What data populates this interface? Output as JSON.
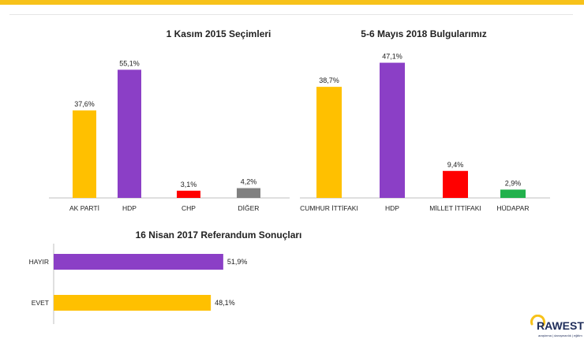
{
  "colors": {
    "accent_bar": "#f7c21a",
    "yellow": "#ffc000",
    "purple": "#8b3fc6",
    "red": "#ff0000",
    "gray": "#808080",
    "green": "#22b14c"
  },
  "chart_data": [
    {
      "type": "bar",
      "title": "1 Kasım 2015 Seçimleri",
      "categories": [
        "AK PARTİ",
        "HDP",
        "CHP",
        "DİĞER"
      ],
      "values": [
        37.6,
        55.1,
        3.1,
        4.2
      ],
      "value_labels": [
        "37,6%",
        "55,1%",
        "3,1%",
        "4,2%"
      ],
      "bar_colors": [
        "#ffc000",
        "#8b3fc6",
        "#ff0000",
        "#808080"
      ],
      "ylim": [
        0,
        60
      ]
    },
    {
      "type": "bar",
      "title": "5-6 Mayıs 2018 Bulgularımız",
      "categories": [
        "CUMHUR İTTİFAKI",
        "HDP",
        "MİLLET İTTİFAKI",
        "HÜDAPAR"
      ],
      "values": [
        38.7,
        47.1,
        9.4,
        2.9
      ],
      "value_labels": [
        "38,7%",
        "47,1%",
        "9,4%",
        "2,9%"
      ],
      "bar_colors": [
        "#ffc000",
        "#8b3fc6",
        "#ff0000",
        "#22b14c"
      ],
      "ylim": [
        0,
        50
      ]
    },
    {
      "type": "bar",
      "orientation": "horizontal",
      "title": "16 Nisan 2017 Referandum Sonuçları",
      "categories": [
        "HAYIR",
        "EVET"
      ],
      "values": [
        51.9,
        48.1
      ],
      "value_labels": [
        "51,9%",
        "48,1%"
      ],
      "bar_colors": [
        "#8b3fc6",
        "#ffc000"
      ],
      "xlim": [
        0,
        100
      ]
    }
  ],
  "logo": {
    "name": "RAWEST",
    "tagline": "araştırma | danışmanlık | eğitim"
  }
}
